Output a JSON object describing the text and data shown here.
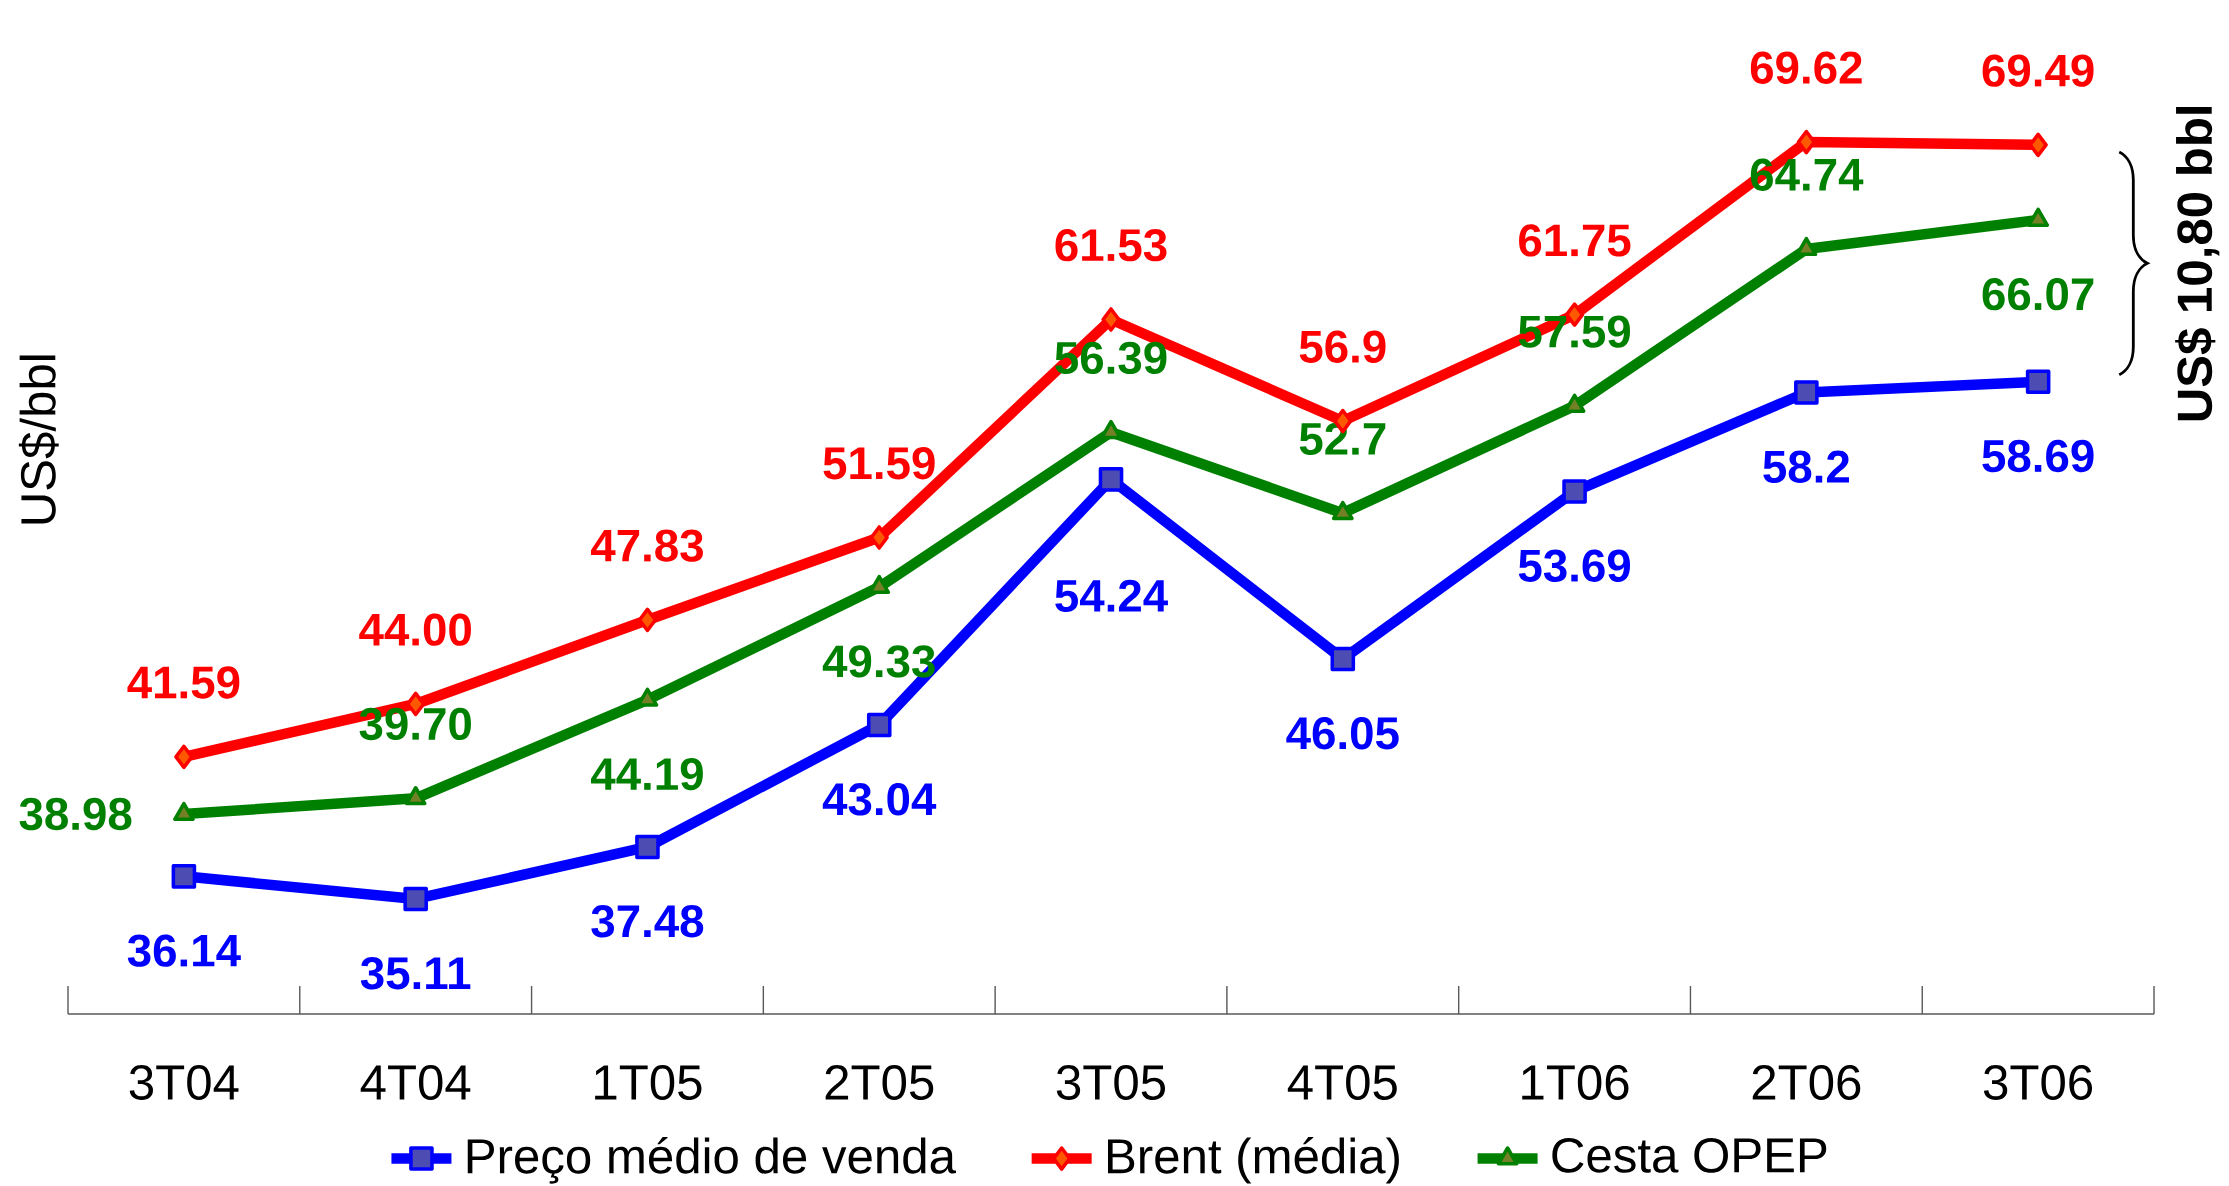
{
  "chart_data": {
    "type": "line",
    "categories": [
      "3T04",
      "4T04",
      "1T05",
      "2T05",
      "3T05",
      "4T05",
      "1T06",
      "2T06",
      "3T06"
    ],
    "ylabel": "US$/bbl",
    "legend": "bottom",
    "line_style": "solid",
    "annotations": [
      "US$ 10,80 bbl"
    ],
    "series": [
      {
        "name": "Preço médio de venda",
        "color": "#0000ff",
        "marker": "square",
        "values": [
          36.14,
          35.11,
          37.48,
          43.04,
          54.24,
          46.05,
          53.69,
          58.2,
          58.69
        ],
        "value_labels": [
          "36.14",
          "35.11",
          "37.48",
          "43.04",
          "54.24",
          "46.05",
          "53.69",
          "58.2",
          "58.69"
        ]
      },
      {
        "name": "Brent (média)",
        "color": "#ff0000",
        "marker": "diamond",
        "values": [
          41.59,
          44.0,
          47.83,
          51.59,
          61.53,
          56.9,
          61.75,
          69.62,
          69.49
        ],
        "value_labels": [
          "41.59",
          "44.00",
          "47.83",
          "51.59",
          "61.53",
          "56.9",
          "61.75",
          "69.62",
          "69.49"
        ]
      },
      {
        "name": "Cesta OPEP",
        "color": "#008000",
        "marker": "triangle",
        "values": [
          38.98,
          39.7,
          44.19,
          49.33,
          56.39,
          52.7,
          57.59,
          64.74,
          66.07
        ],
        "value_labels": [
          "38.98",
          "39.70",
          "44.19",
          "49.33",
          "56.39",
          "52.7",
          "57.59",
          "64.74",
          "66.07"
        ]
      }
    ]
  }
}
